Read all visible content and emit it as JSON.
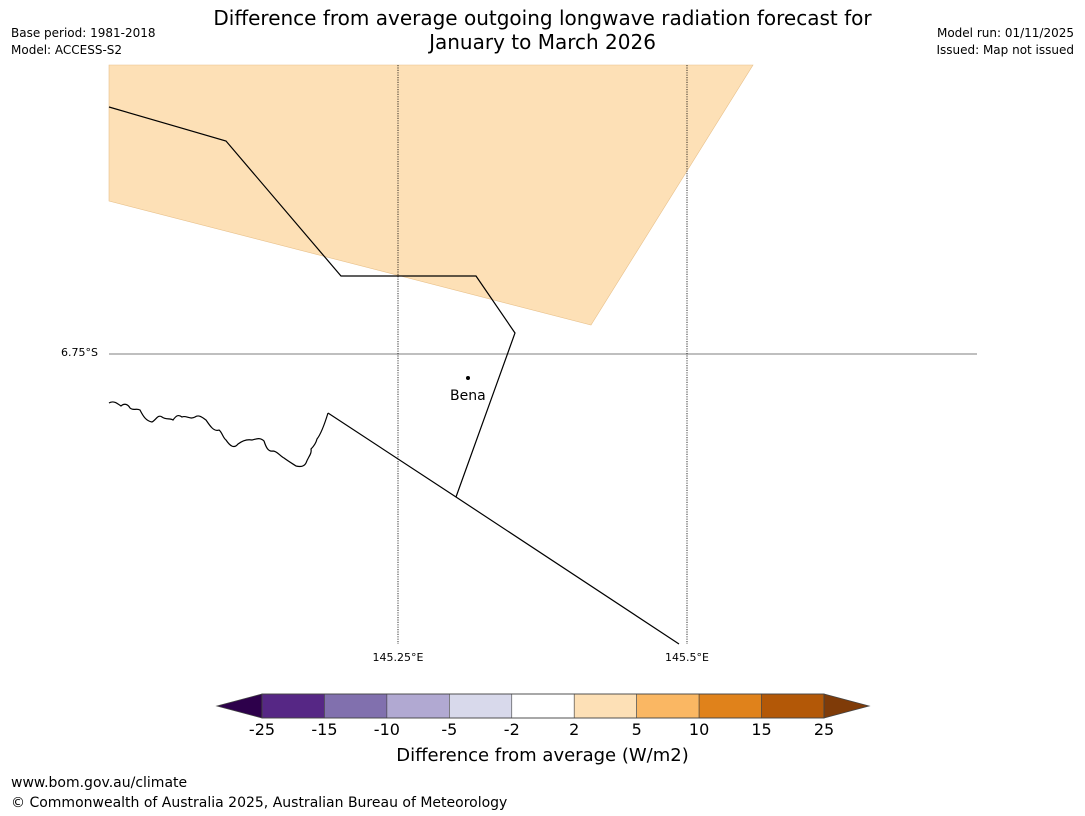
{
  "title": {
    "line1": "Difference from average outgoing longwave radiation forecast for",
    "line2": "January to March 2026"
  },
  "meta_left": {
    "base_period": "Base period: 1981-2018",
    "model": "Model: ACCESS-S2"
  },
  "meta_right": {
    "model_run": "Model run: 01/11/2025",
    "issued": "Issued: Map not issued"
  },
  "map": {
    "latitude_label": "6.75°S",
    "longitude_labels": [
      "145.25°E",
      "145.5°E"
    ],
    "place": "Bena",
    "shaded_category": "2 to 5",
    "shaded_color": "#fde0b6"
  },
  "colorbar": {
    "title": "Difference from average (W/m2)",
    "ticks": [
      "-25",
      "-15",
      "-10",
      "-5",
      "-2",
      "2",
      "5",
      "10",
      "15",
      "25"
    ],
    "colors": [
      "#562785",
      "#8170ae",
      "#b1a9d2",
      "#d8d9eb",
      "#ffffff",
      "#fde0b6",
      "#fab763",
      "#e0821b",
      "#b35807"
    ],
    "under_color": "#2d004b",
    "over_color": "#7f3b08"
  },
  "footer": {
    "url": "www.bom.gov.au/climate",
    "copyright": "© Commonwealth of Australia 2025, Australian Bureau of Meteorology"
  }
}
